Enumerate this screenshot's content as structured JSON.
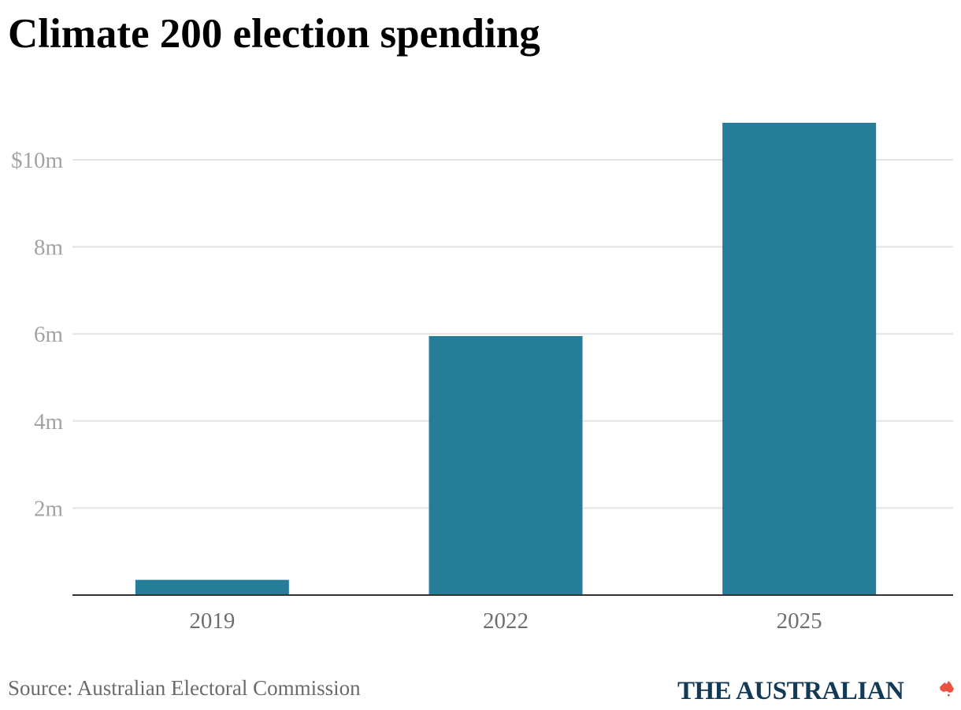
{
  "title": "Climate 200 election spending",
  "source": "Source: Australian Electoral Commission",
  "brand": {
    "name": "THE AUSTRALIAN",
    "color": "#123a57",
    "mark_icon": "australia-map-icon",
    "mark_color": "#e8523e"
  },
  "colors": {
    "bar": "#257d9a",
    "grid": "#e3e3e3",
    "axis": "#333333"
  },
  "chart_data": {
    "type": "bar",
    "title": "Climate 200 election spending",
    "xlabel": "",
    "ylabel": "",
    "categories": [
      "2019",
      "2022",
      "2025"
    ],
    "values": [
      0.35,
      5.95,
      10.85
    ],
    "ylim": [
      0,
      11.5
    ],
    "yticks": [
      2,
      4,
      6,
      8,
      10
    ],
    "ytick_labels": [
      "2m",
      "4m",
      "6m",
      "8m",
      "$10m"
    ],
    "grid": true,
    "legend": "none"
  }
}
